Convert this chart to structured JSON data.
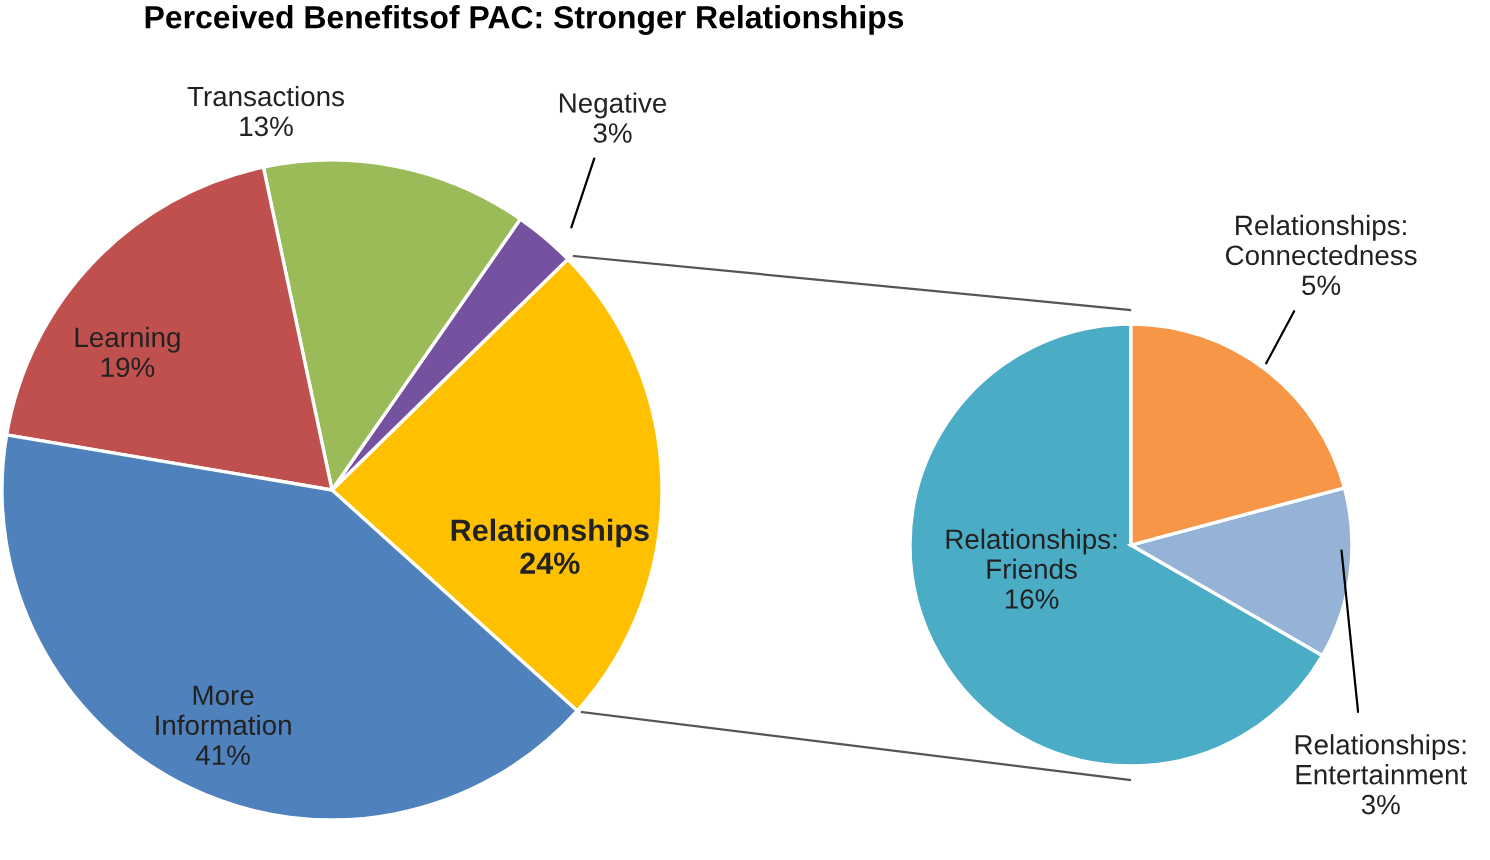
{
  "chart_data": [
    {
      "type": "pie",
      "title": "Perceived Benefitsof PAC: Stronger Relationships",
      "categories": [
        "Relationships",
        "Negative",
        "Transactions",
        "Learning",
        "More\nInformation"
      ],
      "values": [
        24,
        3,
        13,
        19,
        41
      ],
      "value_labels": [
        "24%",
        "3%",
        "13%",
        "19%",
        "41%"
      ],
      "colors": [
        "#ffc000",
        "#7552a0",
        "#9bbb59",
        "#c0504d",
        "#4f81bd"
      ]
    },
    {
      "type": "pie",
      "categories": [
        "Relationships:\nFriends",
        "Relationships:\nEntertainment",
        "Relationships:\nConnectedness"
      ],
      "values": [
        16,
        3,
        5
      ],
      "value_labels": [
        "16%",
        "3%",
        "5%"
      ],
      "colors": [
        "#4bacc6",
        "#95b3d7",
        "#f79646"
      ]
    }
  ]
}
